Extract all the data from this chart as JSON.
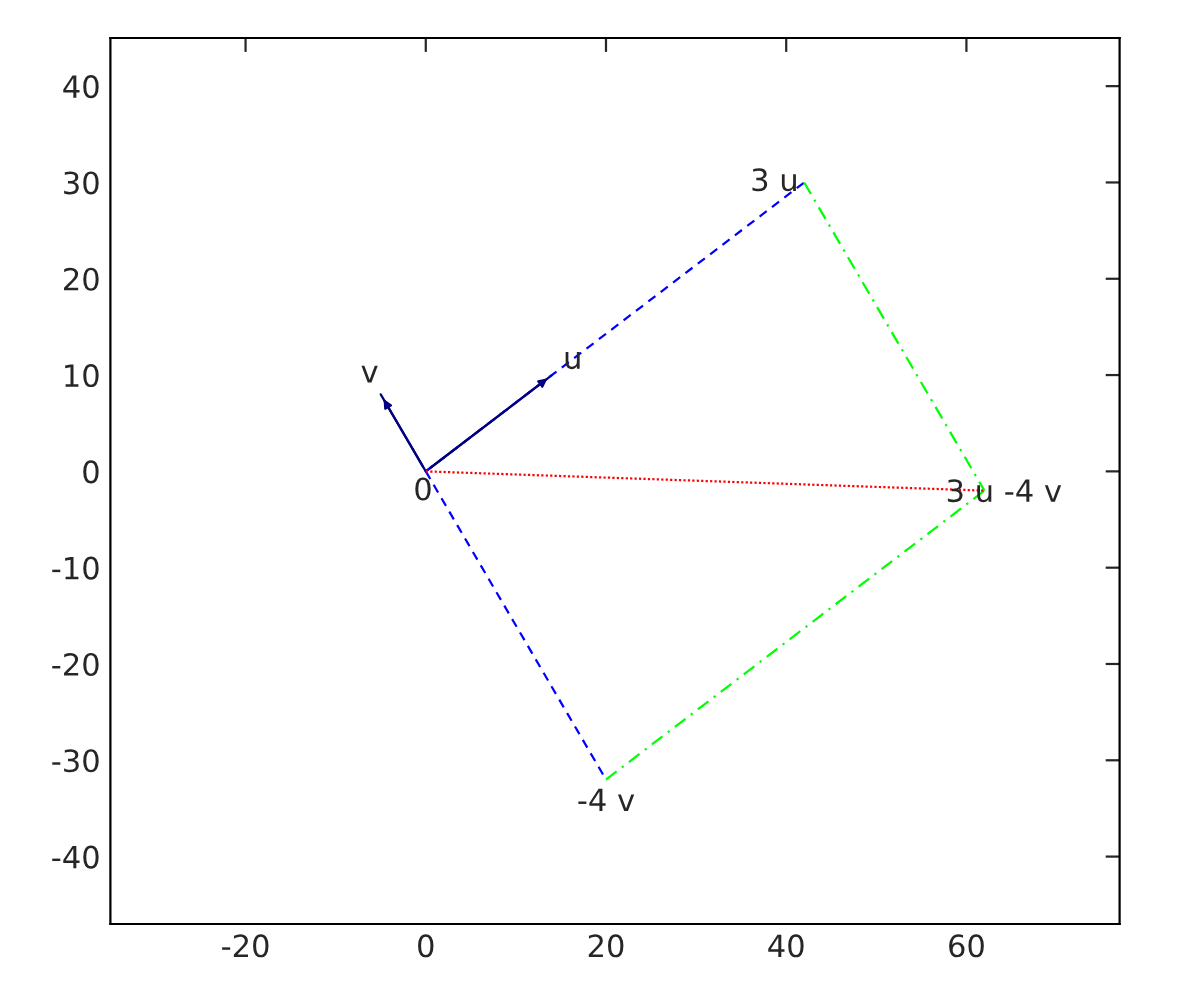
{
  "chart_data": {
    "type": "line",
    "series": [
      {
        "color": "#000080",
        "x": [
          0,
          14
        ],
        "values": [
          0,
          10
        ],
        "line_style": "solid"
      },
      {
        "color": "#000080",
        "x": [
          0,
          -5
        ],
        "values": [
          0,
          8
        ],
        "line_style": "solid"
      },
      {
        "color": "#0000ff",
        "x": [
          0,
          42
        ],
        "values": [
          0,
          30
        ],
        "line_style": "dashed"
      },
      {
        "color": "#0000ff",
        "x": [
          0,
          20
        ],
        "values": [
          0,
          -32
        ],
        "line_style": "dashed"
      },
      {
        "color": "#00ff00",
        "x": [
          42,
          62
        ],
        "values": [
          30,
          -2
        ],
        "line_style": "dashdot"
      },
      {
        "color": "#00ff00",
        "x": [
          20,
          62
        ],
        "values": [
          -32,
          -2
        ],
        "line_style": "dashdot"
      },
      {
        "color": "#ff0000",
        "x": [
          0,
          62
        ],
        "values": [
          0,
          -2
        ],
        "line_style": "dotted"
      }
    ],
    "annotations": [
      {
        "text": "u",
        "x": 14,
        "y": 10
      },
      {
        "text": "v",
        "x": -5,
        "y": 8
      },
      {
        "text": "0",
        "x": 0,
        "y": 0
      },
      {
        "text": "3 u",
        "x": 42,
        "y": 30
      },
      {
        "text": "-4 v",
        "x": 20,
        "y": -32
      },
      {
        "text": "3 u -4 v",
        "x": 62,
        "y": -2
      }
    ],
    "xlim": [
      -35,
      77
    ],
    "ylim": [
      -47,
      45
    ],
    "xticks": [
      -20,
      0,
      20,
      40,
      60
    ],
    "yticks": [
      -40,
      -30,
      -20,
      -10,
      0,
      10,
      20,
      30,
      40
    ],
    "grid": false,
    "legend": false
  }
}
